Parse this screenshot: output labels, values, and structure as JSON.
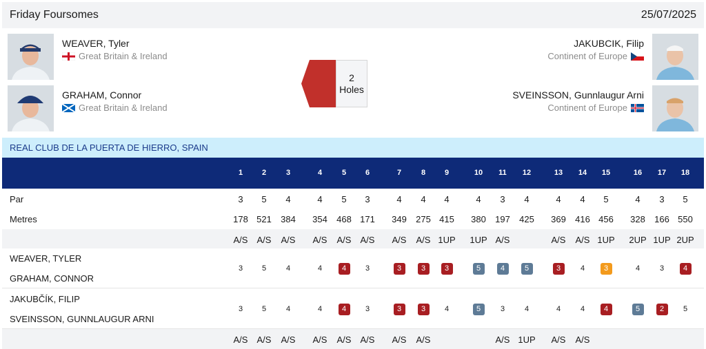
{
  "header": {
    "title": "Friday Foursomes",
    "date": "25/07/2025"
  },
  "team1": {
    "players": [
      {
        "name": "WEAVER, Tyler",
        "team": "Great Britain & Ireland",
        "flag": "england-flag-icon"
      },
      {
        "name": "GRAHAM, Connor",
        "team": "Great Britain & Ireland",
        "flag": "scotland-flag-icon"
      }
    ],
    "color": "#a81e22"
  },
  "team2": {
    "players": [
      {
        "name": "JAKUBCIK, Filip",
        "team": "Continent of Europe",
        "flag": "czech-flag-icon"
      },
      {
        "name": "SVEINSSON, Gunnlaugur Arni",
        "team": "Continent of Europe",
        "flag": "iceland-flag-icon"
      }
    ]
  },
  "match_status": {
    "line1": "2",
    "line2": "Holes"
  },
  "venue": "REAL CLUB DE LA PUERTA DE HIERRO, SPAIN",
  "scorecard": {
    "holes": [
      "1",
      "2",
      "3",
      "4",
      "5",
      "6",
      "7",
      "8",
      "9",
      "10",
      "11",
      "12",
      "13",
      "14",
      "15",
      "16",
      "17",
      "18"
    ],
    "par_label": "Par",
    "par": [
      "3",
      "5",
      "4",
      "4",
      "5",
      "3",
      "4",
      "4",
      "4",
      "4",
      "3",
      "4",
      "4",
      "4",
      "5",
      "4",
      "3",
      "5"
    ],
    "metres_label": "Metres",
    "metres": [
      "178",
      "521",
      "384",
      "354",
      "468",
      "171",
      "349",
      "275",
      "415",
      "380",
      "197",
      "425",
      "369",
      "416",
      "456",
      "328",
      "166",
      "550"
    ],
    "team1_status": [
      "A/S",
      "A/S",
      "A/S",
      "A/S",
      "A/S",
      "A/S",
      "A/S",
      "A/S",
      "1UP",
      "1UP",
      "A/S",
      "",
      "A/S",
      "A/S",
      "1UP",
      "2UP",
      "1UP",
      "2UP"
    ],
    "team1_names": [
      "WEAVER, TYLER",
      "GRAHAM, CONNOR"
    ],
    "team1_scores": [
      {
        "v": "3",
        "t": ""
      },
      {
        "v": "5",
        "t": ""
      },
      {
        "v": "4",
        "t": ""
      },
      {
        "v": "4",
        "t": ""
      },
      {
        "v": "4",
        "t": "bogey"
      },
      {
        "v": "3",
        "t": ""
      },
      {
        "v": "3",
        "t": "bogey"
      },
      {
        "v": "3",
        "t": "bogey"
      },
      {
        "v": "3",
        "t": "bogey"
      },
      {
        "v": "5",
        "t": "birdie"
      },
      {
        "v": "4",
        "t": "birdie"
      },
      {
        "v": "5",
        "t": "birdie"
      },
      {
        "v": "3",
        "t": "bogey"
      },
      {
        "v": "4",
        "t": ""
      },
      {
        "v": "3",
        "t": "eagle"
      },
      {
        "v": "4",
        "t": ""
      },
      {
        "v": "3",
        "t": ""
      },
      {
        "v": "4",
        "t": "bogey"
      }
    ],
    "team2_names": [
      "JAKUBČÍK, FILIP",
      "SVEINSSON, GUNNLAUGUR ARNI"
    ],
    "team2_scores": [
      {
        "v": "3",
        "t": ""
      },
      {
        "v": "5",
        "t": ""
      },
      {
        "v": "4",
        "t": ""
      },
      {
        "v": "4",
        "t": ""
      },
      {
        "v": "4",
        "t": "bogey"
      },
      {
        "v": "3",
        "t": ""
      },
      {
        "v": "3",
        "t": "bogey"
      },
      {
        "v": "3",
        "t": "bogey"
      },
      {
        "v": "4",
        "t": ""
      },
      {
        "v": "5",
        "t": "birdie"
      },
      {
        "v": "3",
        "t": ""
      },
      {
        "v": "4",
        "t": ""
      },
      {
        "v": "4",
        "t": ""
      },
      {
        "v": "4",
        "t": ""
      },
      {
        "v": "4",
        "t": "bogey"
      },
      {
        "v": "5",
        "t": "birdie"
      },
      {
        "v": "2",
        "t": "bogey"
      },
      {
        "v": "5",
        "t": ""
      }
    ],
    "team2_status": [
      "A/S",
      "A/S",
      "A/S",
      "A/S",
      "A/S",
      "A/S",
      "A/S",
      "A/S",
      "",
      "",
      "A/S",
      "1UP",
      "A/S",
      "A/S",
      "",
      "",
      "",
      ""
    ]
  },
  "colors": {
    "header_bg": "#f2f3f5",
    "venue_bg": "#cdeefc",
    "holes_bg": "#0e2a78",
    "bogey_red": "#a81e22",
    "birdie_blue": "#5e7b96",
    "eagle_orange": "#f39a1c"
  }
}
